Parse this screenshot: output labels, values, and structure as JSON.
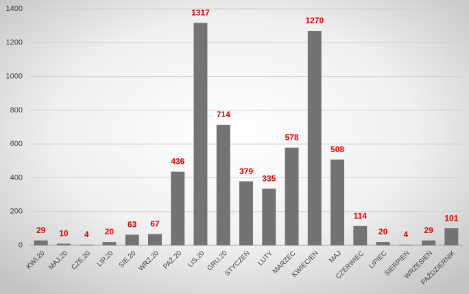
{
  "chart_data": {
    "type": "bar",
    "categories": [
      "KWI.20",
      "MAJ.20",
      "CZE.20",
      "LIP.20",
      "SIE.20",
      "WRZ.20",
      "PAŹ.20",
      "LIS.20",
      "GRU.20",
      "STYCZEŃ",
      "LUTY",
      "MARZEC",
      "KWIECIEŃ",
      "MAJ",
      "CZERWIEC",
      "LIPIEC",
      "SIERPIEŃ",
      "WRZESIEŃ",
      "PAŹDZIERNIK"
    ],
    "values": [
      29,
      10,
      4,
      20,
      63,
      67,
      436,
      1317,
      714,
      379,
      335,
      578,
      1270,
      508,
      114,
      20,
      4,
      29,
      101
    ],
    "color": "#737373",
    "value_label_color": "#e00000",
    "ylim": [
      0,
      1400
    ],
    "yticks": [
      0,
      200,
      400,
      600,
      800,
      1000,
      1200,
      1400
    ],
    "grid": true
  }
}
